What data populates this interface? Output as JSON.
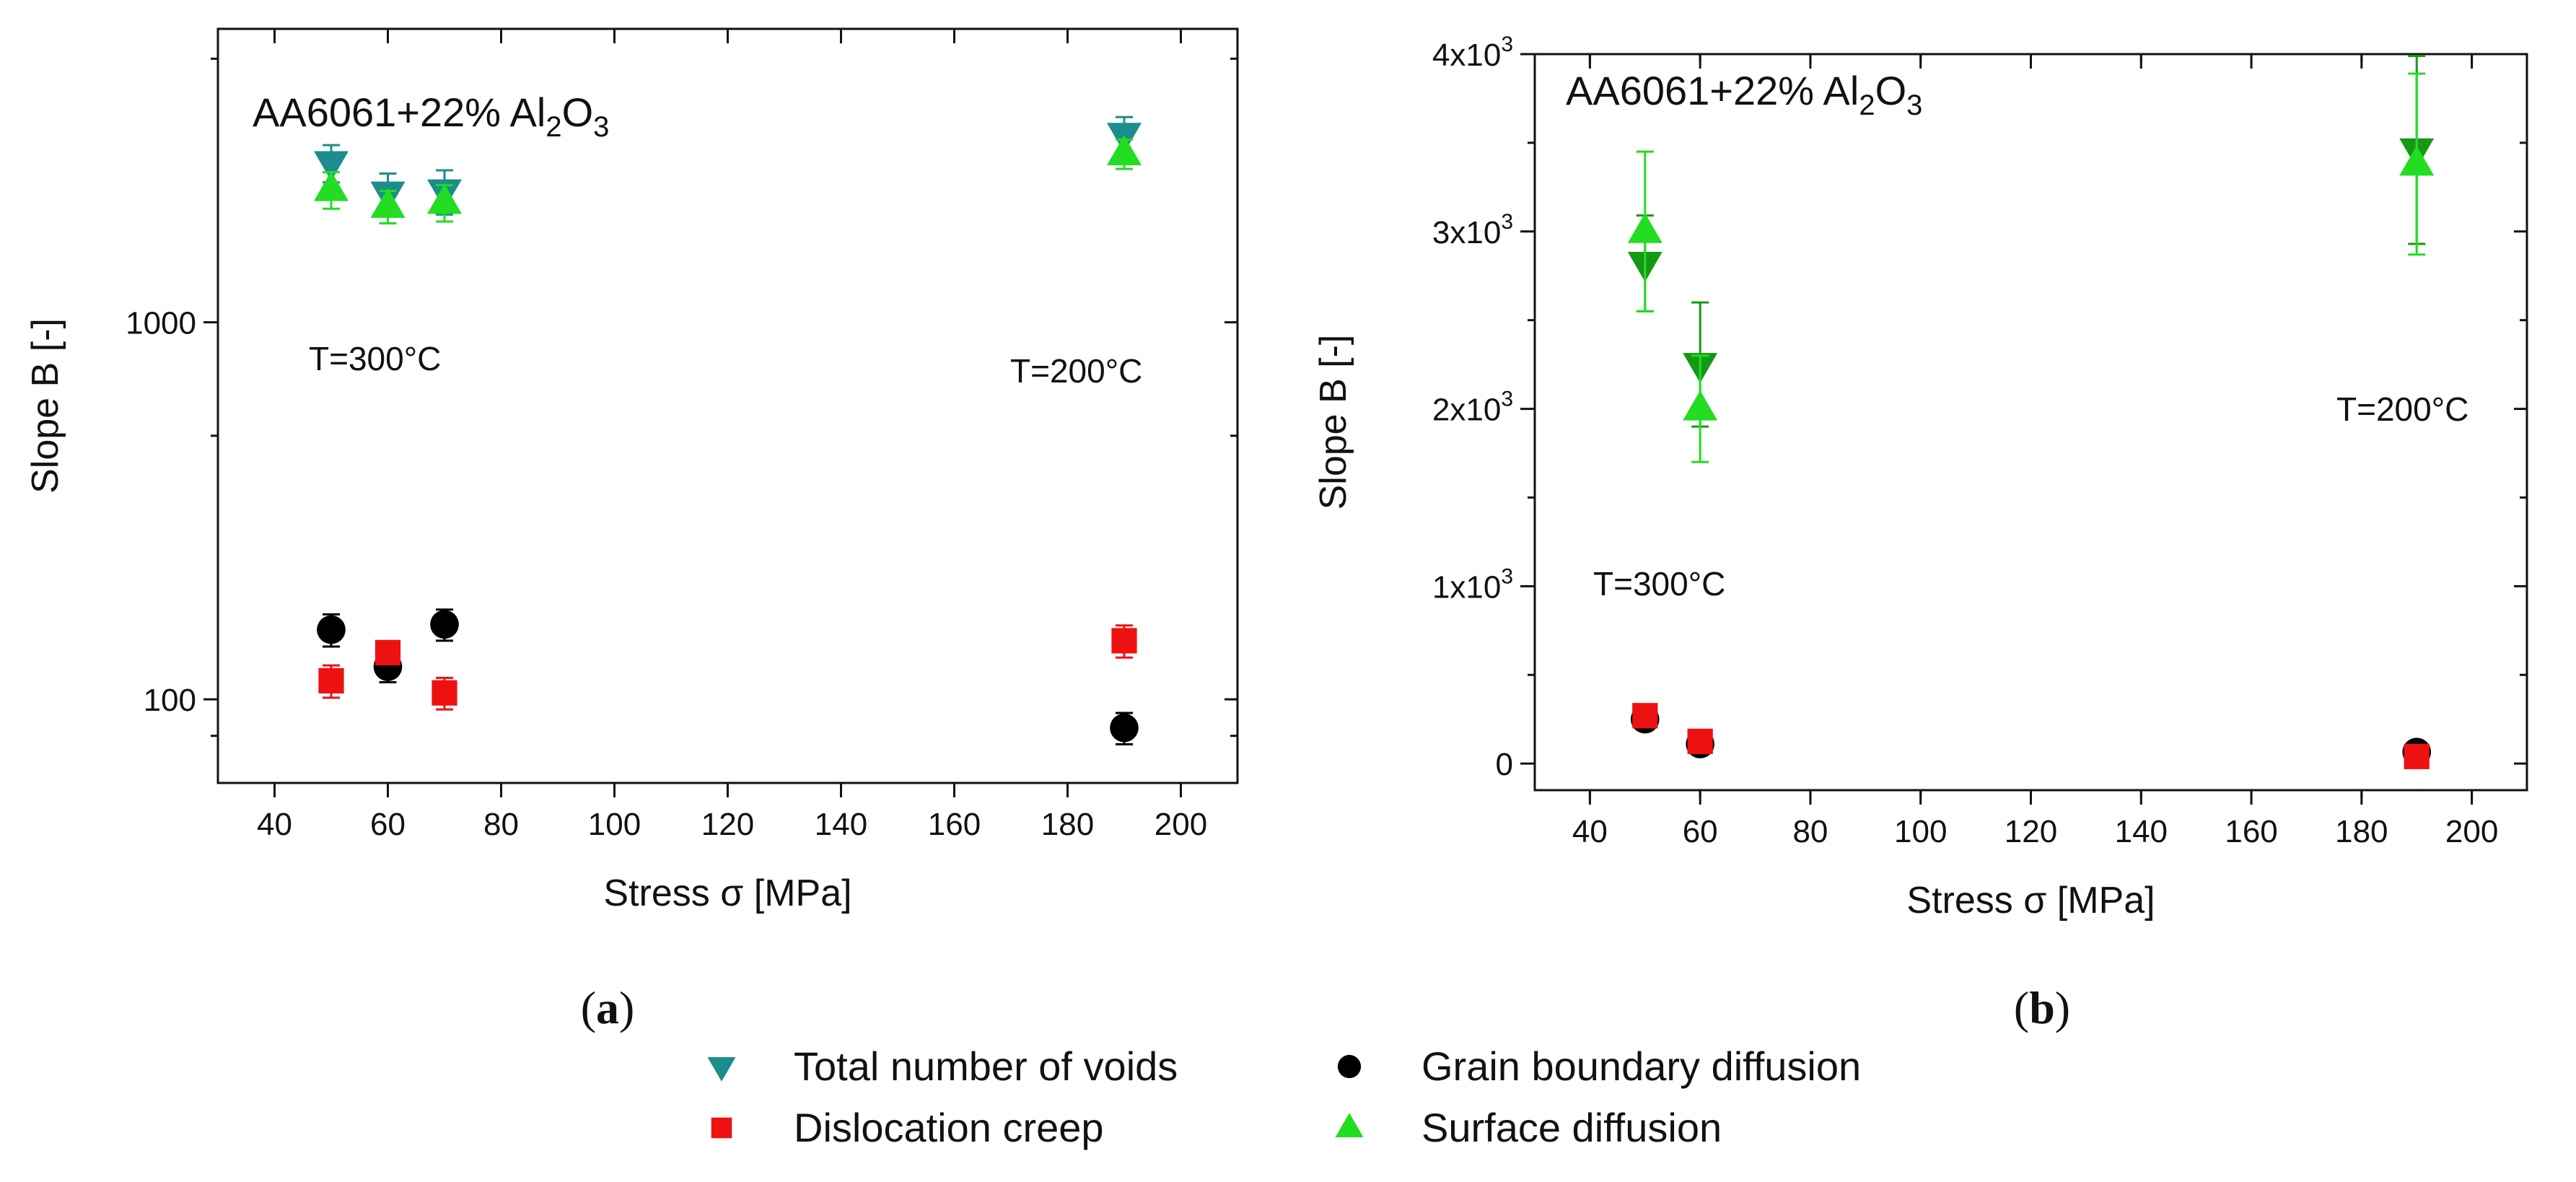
{
  "legend": [
    {
      "key": "voids",
      "label": "Total number of voids",
      "marker": "triangle-down",
      "color": "#1c8c8c"
    },
    {
      "key": "gb",
      "label": "Grain boundary diffusion",
      "marker": "circle",
      "color": "#000000"
    },
    {
      "key": "disl",
      "label": "Dislocation creep",
      "marker": "square",
      "color": "#ee1111"
    },
    {
      "key": "surf",
      "label": "Surface diffusion",
      "marker": "triangle-up",
      "color": "#22dd22"
    }
  ],
  "chart_data": [
    {
      "type": "scatter",
      "panel_label": "(a)",
      "panel_label_parts": [
        "(",
        "a",
        ")"
      ],
      "composition_parts": [
        "AA6061+22% Al",
        "2",
        "O",
        "3"
      ],
      "xlabel": "Stress σ [MPa]",
      "ylabel": "Slope B [-]",
      "xlim": [
        30,
        210
      ],
      "ylim": [
        60,
        6000
      ],
      "yscale": "log",
      "xticks": [
        "40",
        "60",
        "80",
        "100",
        "120",
        "140",
        "160",
        "180",
        "200"
      ],
      "yticks": [
        "100",
        "1000"
      ],
      "annotations": [
        "T=300°C",
        "T=200°C"
      ],
      "series": [
        {
          "key": "voids",
          "name": "Total number of voids",
          "color": "#1c8c8c",
          "marker": "triangle-down",
          "points": [
            {
              "x": 50,
              "y": 2650,
              "err": 300
            },
            {
              "x": 60,
              "y": 2200,
              "err": 280
            },
            {
              "x": 70,
              "y": 2230,
              "err": 300
            },
            {
              "x": 190,
              "y": 3150,
              "err": 350
            }
          ]
        },
        {
          "key": "surf",
          "name": "Surface diffusion",
          "color": "#22dd22",
          "marker": "triangle-up",
          "points": [
            {
              "x": 50,
              "y": 2250,
              "err": 250
            },
            {
              "x": 60,
              "y": 2030,
              "err": 200
            },
            {
              "x": 70,
              "y": 2080,
              "err": 230
            },
            {
              "x": 190,
              "y": 2800,
              "err": 250
            }
          ]
        },
        {
          "key": "gb",
          "name": "Grain boundary diffusion",
          "color": "#000000",
          "marker": "circle",
          "points": [
            {
              "x": 50,
              "y": 153,
              "err": 15
            },
            {
              "x": 60,
              "y": 122,
              "err": 11
            },
            {
              "x": 70,
              "y": 158,
              "err": 15
            },
            {
              "x": 190,
              "y": 84,
              "err": 8
            }
          ]
        },
        {
          "key": "disl",
          "name": "Dislocation creep",
          "color": "#ee1111",
          "marker": "square",
          "points": [
            {
              "x": 50,
              "y": 112,
              "err": 11
            },
            {
              "x": 60,
              "y": 133,
              "err": 8
            },
            {
              "x": 70,
              "y": 104,
              "err": 10
            },
            {
              "x": 190,
              "y": 143,
              "err": 14
            }
          ]
        }
      ]
    },
    {
      "type": "scatter",
      "panel_label": "(b)",
      "panel_label_parts": [
        "(",
        "b",
        ")"
      ],
      "composition_parts": [
        "AA6061+22% Al",
        "2",
        "O",
        "3"
      ],
      "xlabel": "Stress σ [MPa]",
      "ylabel": "Slope B [-]",
      "xlim": [
        30,
        210
      ],
      "ylim": [
        -150,
        4000
      ],
      "yscale": "linear",
      "xticks": [
        "40",
        "60",
        "80",
        "100",
        "120",
        "140",
        "160",
        "180",
        "200"
      ],
      "yticks": [
        {
          "value": 0,
          "mant": "0",
          "exp": ""
        },
        {
          "value": 1000,
          "mant": "1x10",
          "exp": "3"
        },
        {
          "value": 2000,
          "mant": "2x10",
          "exp": "3"
        },
        {
          "value": 3000,
          "mant": "3x10",
          "exp": "3"
        },
        {
          "value": 4000,
          "mant": "4x10",
          "exp": "3"
        }
      ],
      "annotations": [
        "T=300°C",
        "T=200°C"
      ],
      "series": [
        {
          "key": "voids",
          "name": "Total number of voids",
          "color": "#159915",
          "marker": "triangle-down",
          "points": [
            {
              "x": 50,
              "y": 2820,
              "err": 270
            },
            {
              "x": 60,
              "y": 2250,
              "err": 350
            },
            {
              "x": 190,
              "y": 3460,
              "err": 530
            }
          ]
        },
        {
          "key": "surf",
          "name": "Surface diffusion",
          "color": "#22dd22",
          "marker": "triangle-up",
          "points": [
            {
              "x": 50,
              "y": 3000,
              "err": 450
            },
            {
              "x": 60,
              "y": 2000,
              "err": 300
            },
            {
              "x": 190,
              "y": 3380,
              "err": 510
            }
          ]
        },
        {
          "key": "gb",
          "name": "Grain boundary diffusion",
          "color": "#000000",
          "marker": "circle",
          "points": [
            {
              "x": 50,
              "y": 250,
              "err": 25
            },
            {
              "x": 60,
              "y": 110,
              "err": 12
            },
            {
              "x": 190,
              "y": 65,
              "err": 8
            }
          ]
        },
        {
          "key": "disl",
          "name": "Dislocation creep",
          "color": "#ee1111",
          "marker": "square",
          "points": [
            {
              "x": 50,
              "y": 270,
              "err": 25
            },
            {
              "x": 60,
              "y": 125,
              "err": 12
            },
            {
              "x": 190,
              "y": 40,
              "err": 6
            }
          ]
        }
      ]
    }
  ]
}
